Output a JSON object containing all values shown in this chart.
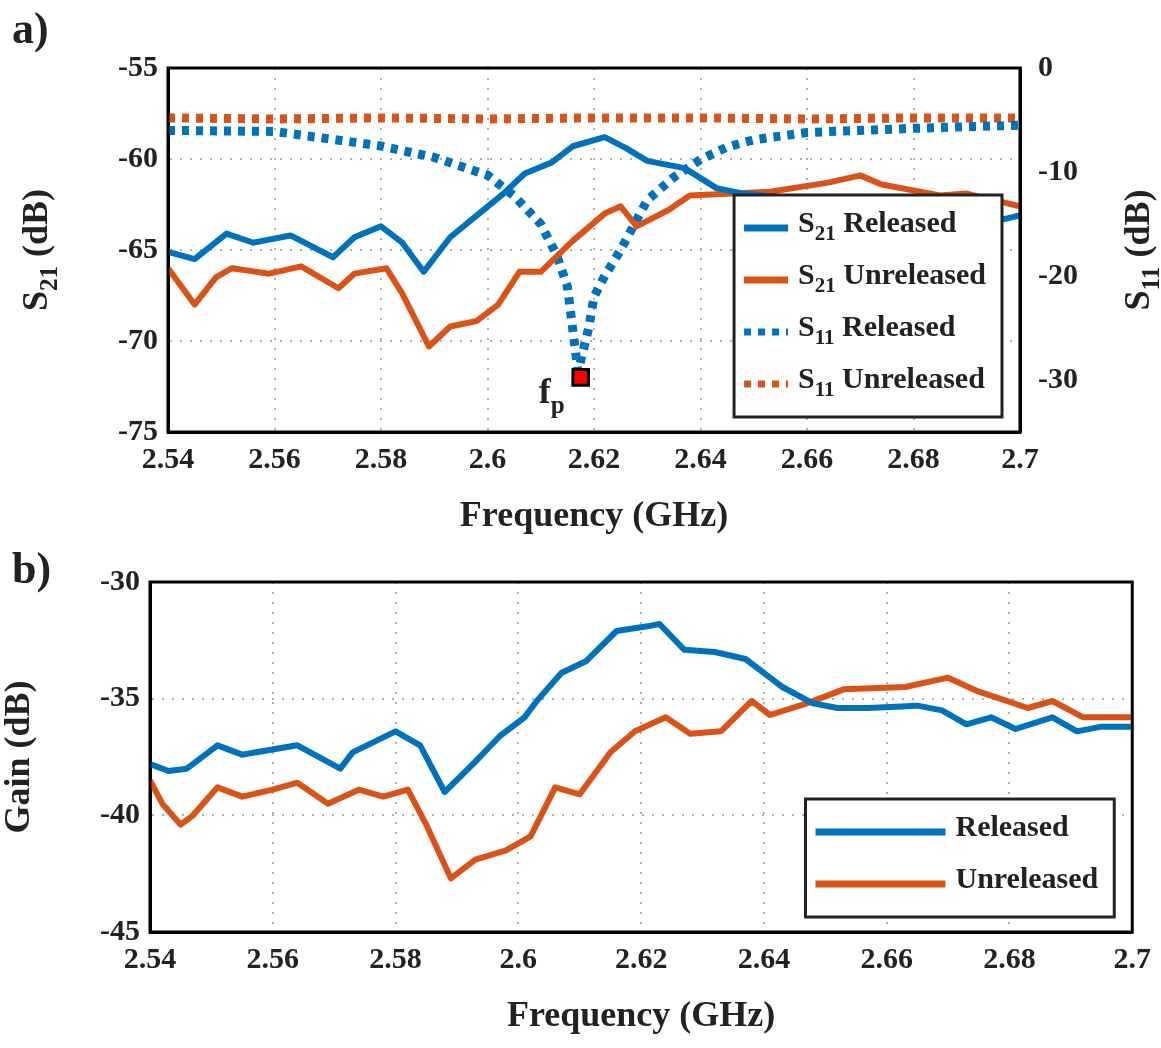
{
  "chart_data": [
    {
      "type": "line",
      "xlabel": "Frequency (GHz)",
      "ylabel": "S$_{21}$ (dB)",
      "y2label": "S$_{11}$ (dB)",
      "xlim": [
        2.54,
        2.7
      ],
      "xticks": [
        2.54,
        2.56,
        2.58,
        2.6,
        2.62,
        2.64,
        2.66,
        2.68,
        2.7
      ],
      "ylim": [
        -75,
        -55
      ],
      "yticks": [
        -75,
        -70,
        -65,
        -60,
        -55
      ],
      "y2lim": [
        -35,
        0
      ],
      "y2ticks": [
        -30,
        -20,
        -10,
        0
      ],
      "grid": true,
      "legend": "bottom right",
      "annotations": [
        "a)",
        {
          "text": "f$_{p}$",
          "x": 2.6175,
          "y": -72
        }
      ],
      "series": [
        {
          "name": "S$_{21}$ Released",
          "color": "#0072bd",
          "line_style": "solid",
          "x": [
            2.54,
            2.545,
            2.551,
            2.556,
            2.563,
            2.571,
            2.575,
            2.58,
            2.584,
            2.588,
            2.593,
            2.598,
            2.603,
            2.607,
            2.612,
            2.616,
            2.622,
            2.626,
            2.63,
            2.637,
            2.643,
            2.648,
            2.697,
            2.7
          ],
          "values": [
            -65.1,
            -65.5,
            -64.1,
            -64.6,
            -64.2,
            -65.4,
            -64.3,
            -63.7,
            -64.6,
            -66.2,
            -64.3,
            -63.1,
            -61.9,
            -60.8,
            -60.2,
            -59.3,
            -58.8,
            -59.4,
            -60.1,
            -60.5,
            -61.6,
            -61.9,
            -63.3,
            -63.1
          ]
        },
        {
          "name": "S$_{21}$ Unreleased",
          "color": "#d95319",
          "line_style": "solid",
          "x": [
            2.54,
            2.545,
            2.549,
            2.552,
            2.559,
            2.565,
            2.572,
            2.575,
            2.581,
            2.584,
            2.589,
            2.593,
            2.598,
            2.602,
            2.606,
            2.61,
            2.616,
            2.622,
            2.625,
            2.628,
            2.634,
            2.638,
            2.653,
            2.664,
            2.67,
            2.674,
            2.685,
            2.69,
            2.7
          ],
          "values": [
            -66.0,
            -68.0,
            -66.5,
            -66.0,
            -66.3,
            -65.9,
            -67.1,
            -66.3,
            -66.0,
            -67.4,
            -70.3,
            -69.2,
            -68.9,
            -68.0,
            -66.2,
            -66.2,
            -64.5,
            -63.0,
            -62.6,
            -63.7,
            -62.8,
            -62.0,
            -61.8,
            -61.3,
            -60.9,
            -61.4,
            -62.0,
            -61.9,
            -62.6
          ]
        },
        {
          "name": "S$_{11}$ Released",
          "color": "#0072bd",
          "line_style": "dotted",
          "axis": "y2",
          "x": [
            2.54,
            2.56,
            2.58,
            2.59,
            2.6,
            2.605,
            2.61,
            2.613,
            2.615,
            2.617,
            2.619,
            2.62,
            2.622,
            2.625,
            2.63,
            2.635,
            2.64,
            2.645,
            2.65,
            2.66,
            2.68,
            2.7
          ],
          "values": [
            -6.0,
            -6.1,
            -7.5,
            -8.6,
            -10.3,
            -12.3,
            -15.0,
            -18.0,
            -21.0,
            -29.2,
            -25.0,
            -22.0,
            -20.0,
            -17.5,
            -12.7,
            -10.5,
            -8.8,
            -7.6,
            -6.9,
            -6.2,
            -5.8,
            -5.5
          ]
        },
        {
          "name": "S$_{11}$ Unreleased",
          "color": "#d95319",
          "line_style": "dotted",
          "axis": "y2",
          "x": [
            2.54,
            2.56,
            2.58,
            2.6,
            2.62,
            2.64,
            2.66,
            2.68,
            2.7
          ],
          "values": [
            -4.8,
            -4.9,
            -4.8,
            -4.9,
            -4.8,
            -4.8,
            -4.9,
            -4.8,
            -4.8
          ]
        },
        {
          "type": "scatter",
          "color": "#ff0000",
          "marker": "square",
          "x": [
            2.6175
          ],
          "values": [
            -72
          ]
        }
      ]
    },
    {
      "type": "line",
      "xlabel": "Frequency (GHz)",
      "ylabel": "Gain (dB)",
      "xlim": [
        2.54,
        2.7
      ],
      "xticks": [
        2.54,
        2.56,
        2.58,
        2.6,
        2.62,
        2.64,
        2.66,
        2.68,
        2.7
      ],
      "ylim": [
        -45,
        -30
      ],
      "yticks": [
        -45,
        -40,
        -35,
        -30
      ],
      "grid": true,
      "legend": "bottom right",
      "annotations": [
        "b)"
      ],
      "series": [
        {
          "name": "Released",
          "color": "#0072bd",
          "line_style": "solid",
          "x": [
            2.54,
            2.543,
            2.546,
            2.551,
            2.555,
            2.564,
            2.571,
            2.573,
            2.58,
            2.584,
            2.588,
            2.593,
            2.597,
            2.601,
            2.603,
            2.607,
            2.611,
            2.616,
            2.621,
            2.623,
            2.627,
            2.632,
            2.637,
            2.643,
            2.648,
            2.652,
            2.657,
            2.665,
            2.669,
            2.673,
            2.677,
            2.681,
            2.687,
            2.691,
            2.695,
            2.7
          ],
          "values": [
            -37.8,
            -38.1,
            -38.0,
            -37.0,
            -37.4,
            -37.0,
            -38.0,
            -37.3,
            -36.4,
            -37.0,
            -39.0,
            -37.7,
            -36.6,
            -35.8,
            -35.1,
            -33.9,
            -33.4,
            -32.1,
            -31.9,
            -31.8,
            -32.9,
            -33.0,
            -33.3,
            -34.5,
            -35.2,
            -35.4,
            -35.4,
            -35.3,
            -35.5,
            -36.1,
            -35.8,
            -36.3,
            -35.8,
            -36.4,
            -36.2,
            -36.2
          ]
        },
        {
          "name": "Unreleased",
          "color": "#d95319",
          "line_style": "solid",
          "x": [
            2.54,
            2.542,
            2.545,
            2.547,
            2.551,
            2.555,
            2.56,
            2.564,
            2.569,
            2.574,
            2.578,
            2.582,
            2.585,
            2.589,
            2.593,
            2.598,
            2.602,
            2.606,
            2.61,
            2.615,
            2.619,
            2.624,
            2.628,
            2.633,
            2.638,
            2.641,
            2.647,
            2.653,
            2.663,
            2.67,
            2.675,
            2.683,
            2.687,
            2.692,
            2.7
          ],
          "values": [
            -38.5,
            -39.5,
            -40.4,
            -40.0,
            -38.8,
            -39.2,
            -38.9,
            -38.6,
            -39.5,
            -38.9,
            -39.2,
            -38.9,
            -40.4,
            -42.7,
            -41.9,
            -41.5,
            -40.9,
            -38.8,
            -39.1,
            -37.3,
            -36.4,
            -35.8,
            -36.5,
            -36.4,
            -35.1,
            -35.7,
            -35.2,
            -34.6,
            -34.5,
            -34.1,
            -34.7,
            -35.4,
            -35.1,
            -35.8,
            -35.8
          ]
        }
      ]
    }
  ]
}
